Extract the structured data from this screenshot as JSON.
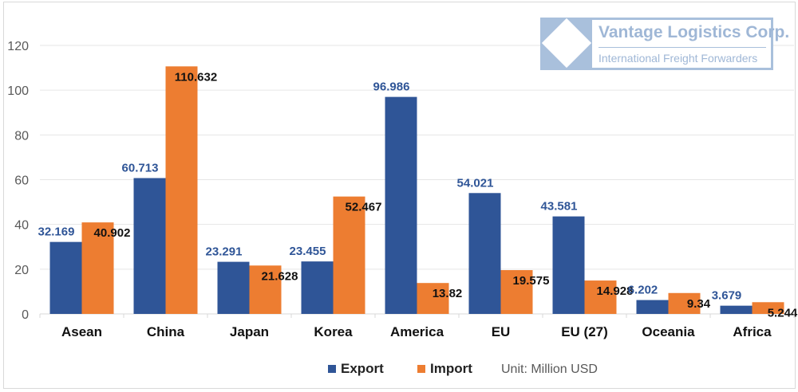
{
  "logo": {
    "title": "Vantage Logistics Corp.",
    "subtitle": "International Freight Forwarders"
  },
  "chart_data": {
    "type": "bar",
    "title": "",
    "categories": [
      "Asean",
      "China",
      "Japan",
      "Korea",
      "America",
      "EU",
      "EU (27)",
      "Oceania",
      "Africa"
    ],
    "series": [
      {
        "name": "Export",
        "color": "#2F5597",
        "values": [
          32.169,
          60.713,
          23.291,
          23.455,
          96.986,
          54.021,
          43.581,
          6.202,
          3.679
        ]
      },
      {
        "name": "Import",
        "color": "#ED7D31",
        "values": [
          40.902,
          110.632,
          21.628,
          52.467,
          13.82,
          19.575,
          14.928,
          9.34,
          5.244
        ]
      }
    ],
    "ylim": [
      0,
      120
    ],
    "yticks": [
      0,
      20,
      40,
      60,
      80,
      100,
      120
    ],
    "grid": true,
    "legend": "bottom",
    "unit_note": "Unit: Million USD"
  }
}
